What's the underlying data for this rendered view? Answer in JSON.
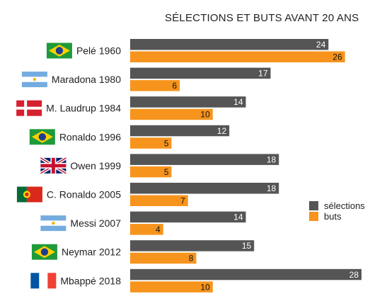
{
  "chart_data": {
    "type": "bar",
    "orientation": "horizontal",
    "title": "SÉLECTIONS ET BUTS AVANT 20 ANS",
    "categories": [
      "Pelé 1960",
      "Maradona 1980",
      "M. Laudrup 1984",
      "Ronaldo 1996",
      "Owen 1999",
      "C. Ronaldo 2005",
      "Messi 2007",
      "Neymar 2012",
      "Mbappé 2018"
    ],
    "flags": [
      "brazil",
      "argentina",
      "denmark",
      "brazil",
      "united-kingdom",
      "portugal",
      "argentina",
      "brazil",
      "france"
    ],
    "series": [
      {
        "name": "sélections",
        "color": "#555555",
        "values": [
          24,
          17,
          14,
          12,
          18,
          18,
          14,
          15,
          28
        ]
      },
      {
        "name": "buts",
        "color": "#f7941d",
        "values": [
          26,
          6,
          10,
          5,
          5,
          7,
          4,
          8,
          10
        ]
      }
    ],
    "xlim": [
      0,
      28
    ],
    "grid": false,
    "legend": "right"
  }
}
